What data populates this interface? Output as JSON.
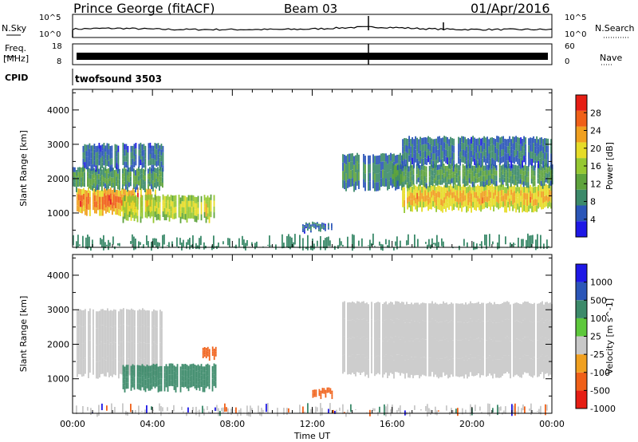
{
  "header": {
    "station": "Prince George (fitACF)",
    "beam": "Beam 03",
    "date": "01/Apr/2016"
  },
  "top_panels": {
    "nsky_label": "N.Sky",
    "nsky_ticks": [
      "10^5",
      "10^0"
    ],
    "nsearch_label": "N.Search",
    "nsearch_ticks": [
      "10^5",
      "10^0"
    ],
    "freq_label_1": "Freq.",
    "freq_label_2": "[MHz]",
    "freq_ticks": [
      "18",
      "8"
    ],
    "nave_label": "Nave",
    "nave_ticks": [
      "60",
      "0"
    ],
    "cpid_label": "CPID",
    "cpid_text": "twofsound 3503"
  },
  "chart_data": [
    {
      "type": "heatmap",
      "panel": "power",
      "ylabel": "Slant Range [km]",
      "xlabel": "",
      "x_ticks": [
        "00:00",
        "04:00",
        "08:00",
        "12:00",
        "16:00",
        "20:00",
        "00:00"
      ],
      "x_range_hours": [
        0,
        24
      ],
      "y_ticks": [
        1000,
        2000,
        3000,
        4000
      ],
      "ylim": [
        0,
        4600
      ],
      "colorbar_label": "Power [dB]",
      "colorbar_ticks": [
        "4",
        "8",
        "12",
        "16",
        "20",
        "24",
        "28"
      ],
      "colorbar_range": [
        0,
        32
      ],
      "colors": [
        "#1e18e6",
        "#2b56b8",
        "#3c8a6a",
        "#5ea33c",
        "#96c832",
        "#e6dc28",
        "#f0a020",
        "#f06018",
        "#e61e14"
      ],
      "regions": [
        {
          "t": [
            0.2,
            4.2
          ],
          "r": [
            1000,
            1700
          ],
          "v": 28
        },
        {
          "t": [
            0.0,
            4.5
          ],
          "r": [
            1700,
            2300
          ],
          "v": 12
        },
        {
          "t": [
            0.5,
            4.5
          ],
          "r": [
            2300,
            3000
          ],
          "v": 8
        },
        {
          "t": [
            2.5,
            7.2
          ],
          "r": [
            800,
            1500
          ],
          "v": 20
        },
        {
          "t": [
            13.5,
            16.5
          ],
          "r": [
            1700,
            2700
          ],
          "v": 10
        },
        {
          "t": [
            16.5,
            24.0
          ],
          "r": [
            1100,
            1800
          ],
          "v": 24
        },
        {
          "t": [
            16.0,
            24.0
          ],
          "r": [
            1800,
            2400
          ],
          "v": 12
        },
        {
          "t": [
            16.5,
            24.0
          ],
          "r": [
            2400,
            3200
          ],
          "v": 8
        },
        {
          "t": [
            11.5,
            13.0
          ],
          "r": [
            500,
            700
          ],
          "v": 8
        },
        {
          "t": [
            0.0,
            24.0
          ],
          "r": [
            0,
            400
          ],
          "v": 8
        }
      ]
    },
    {
      "type": "heatmap",
      "panel": "velocity",
      "ylabel": "Slant Range [km]",
      "xlabel": "Time UT",
      "x_ticks": [
        "00:00",
        "04:00",
        "08:00",
        "12:00",
        "16:00",
        "20:00",
        "00:00"
      ],
      "x_range_hours": [
        0,
        24
      ],
      "y_ticks": [
        1000,
        2000,
        3000,
        4000
      ],
      "ylim": [
        0,
        4600
      ],
      "colorbar_label": "Velocity [m s^-1]",
      "colorbar_ticks": [
        "1000",
        "500",
        "100",
        "25",
        "-25",
        "-100",
        "-500",
        "-1000"
      ],
      "colors": [
        "#1e18e6",
        "#2b56b8",
        "#3c8a6a",
        "#5ec83c",
        "#c8c8c8",
        "#f0a020",
        "#f06018",
        "#e61e14"
      ],
      "regions": [
        {
          "t": [
            0.2,
            4.5
          ],
          "r": [
            1100,
            3000
          ],
          "v": 0
        },
        {
          "t": [
            2.5,
            7.2
          ],
          "r": [
            700,
            1400
          ],
          "v": 150
        },
        {
          "t": [
            6.5,
            7.2
          ],
          "r": [
            1600,
            1900
          ],
          "v": -200
        },
        {
          "t": [
            13.5,
            24.0
          ],
          "r": [
            1100,
            3200
          ],
          "v": 0
        },
        {
          "t": [
            12.0,
            13.0
          ],
          "r": [
            500,
            700
          ],
          "v": -150
        },
        {
          "t": [
            0.0,
            24.0
          ],
          "r": [
            0,
            300
          ],
          "v": 0
        }
      ]
    }
  ]
}
